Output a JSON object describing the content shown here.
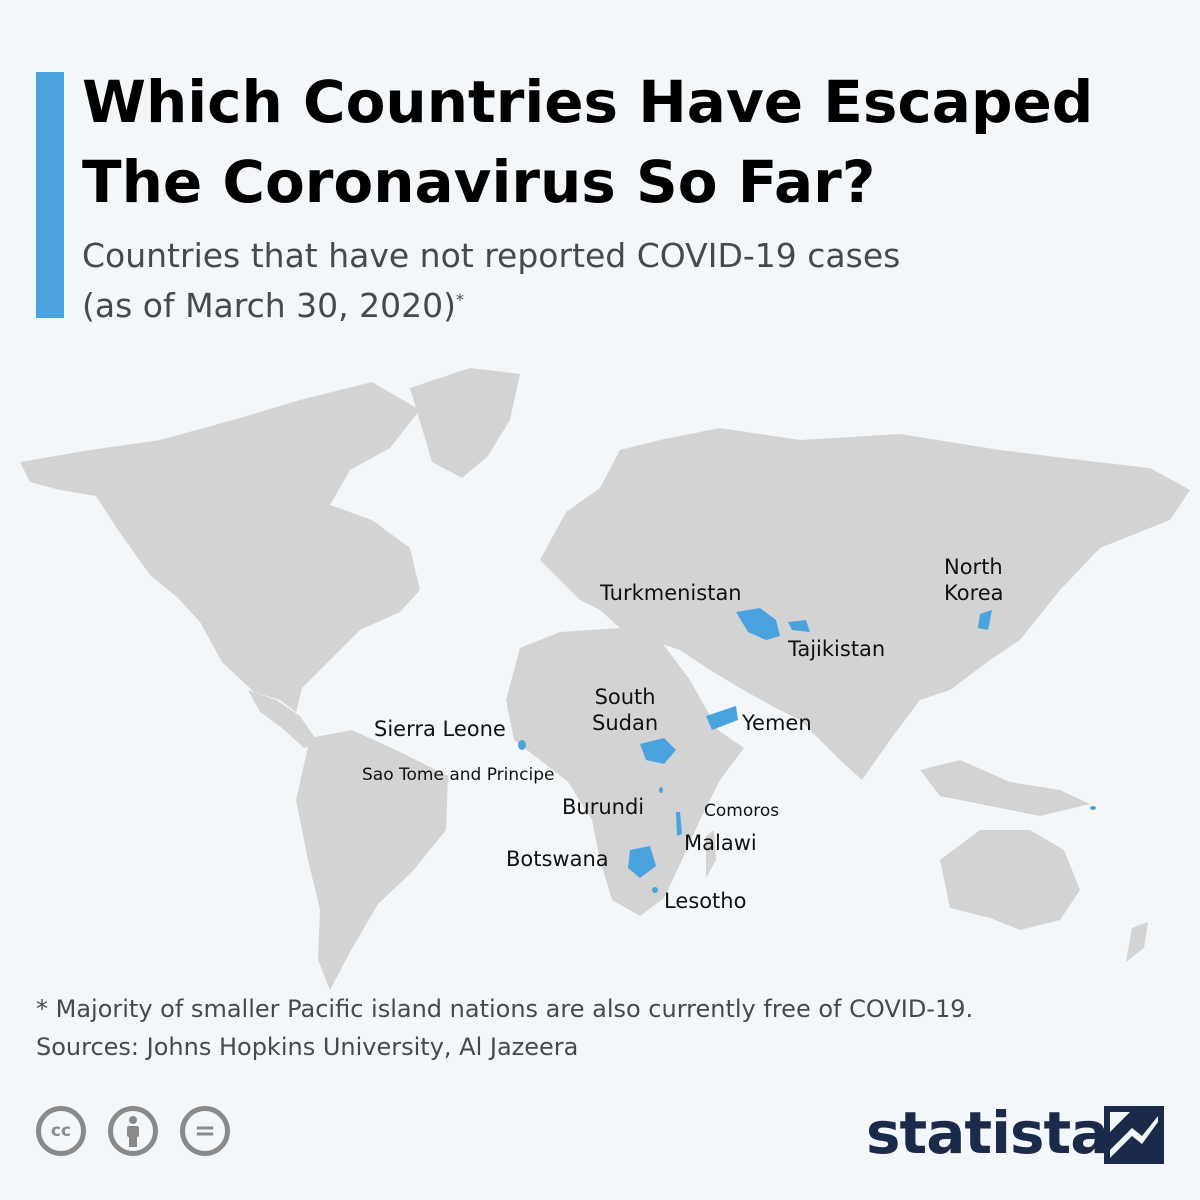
{
  "title": {
    "line1": "Which Countries Have Escaped",
    "line2": "The Coronavirus So Far?"
  },
  "subtitle": {
    "line1": "Countries that have not reported COVID-19 cases",
    "line2": "(as of March 30, 2020)",
    "marker": "*"
  },
  "map": {
    "highlight_color": "#4aa3df",
    "land_color": "#d3d3d3",
    "highlighted_countries": {
      "turkmenistan": "Turkmenistan",
      "tajikistan": "Tajikistan",
      "north_korea_line1": "North",
      "north_korea_line2": "Korea",
      "yemen": "Yemen",
      "south_sudan_line1": "South",
      "south_sudan_line2": "Sudan",
      "sierra_leone": "Sierra Leone",
      "sao_tome": "Sao Tome and Principe",
      "burundi": "Burundi",
      "comoros": "Comoros",
      "malawi": "Malawi",
      "botswana": "Botswana",
      "lesotho": "Lesotho"
    }
  },
  "footnote": {
    "note": "* Majority of smaller Pacific island nations are also currently free of COVID-19.",
    "sources": "Sources: Johns Hopkins University, Al Jazeera"
  },
  "license_icons": {
    "cc": "cc",
    "equals": "="
  },
  "brand": {
    "name": "statista",
    "color": "#1b2a4a"
  }
}
